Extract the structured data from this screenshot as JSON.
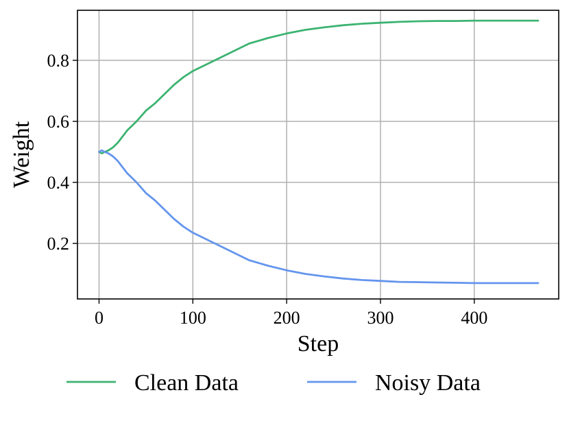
{
  "chart_data": {
    "type": "line",
    "xlabel": "Step",
    "ylabel": "Weight",
    "xlim": [
      -23,
      490
    ],
    "ylim": [
      0.018,
      0.964
    ],
    "x_ticks": [
      0,
      100,
      200,
      300,
      400
    ],
    "x_tick_labels": [
      "0",
      "100",
      "200",
      "300",
      "400"
    ],
    "y_ticks": [
      0.2,
      0.4,
      0.6,
      0.8
    ],
    "y_tick_labels": [
      "0.2",
      "0.4",
      "0.6",
      "0.8"
    ],
    "grid": true,
    "legend_position": "bottom-center",
    "x": [
      0,
      3,
      6,
      10,
      15,
      20,
      30,
      40,
      50,
      60,
      70,
      80,
      90,
      100,
      120,
      140,
      160,
      180,
      200,
      220,
      240,
      260,
      280,
      300,
      320,
      340,
      360,
      380,
      400,
      420,
      440,
      468
    ],
    "series": [
      {
        "name": "Clean Data",
        "color": "#3cb371",
        "values": [
          0.5,
          0.495,
          0.5,
          0.505,
          0.515,
          0.53,
          0.57,
          0.6,
          0.635,
          0.66,
          0.69,
          0.72,
          0.745,
          0.765,
          0.795,
          0.825,
          0.855,
          0.873,
          0.888,
          0.9,
          0.908,
          0.915,
          0.92,
          0.923,
          0.926,
          0.928,
          0.929,
          0.929,
          0.93,
          0.93,
          0.93,
          0.93
        ]
      },
      {
        "name": "Noisy Data",
        "color": "#6495ed",
        "values": [
          0.5,
          0.505,
          0.5,
          0.495,
          0.485,
          0.47,
          0.43,
          0.4,
          0.365,
          0.34,
          0.31,
          0.28,
          0.255,
          0.235,
          0.205,
          0.175,
          0.145,
          0.127,
          0.112,
          0.1,
          0.092,
          0.085,
          0.08,
          0.077,
          0.074,
          0.073,
          0.072,
          0.071,
          0.07,
          0.07,
          0.07,
          0.07
        ]
      }
    ]
  }
}
